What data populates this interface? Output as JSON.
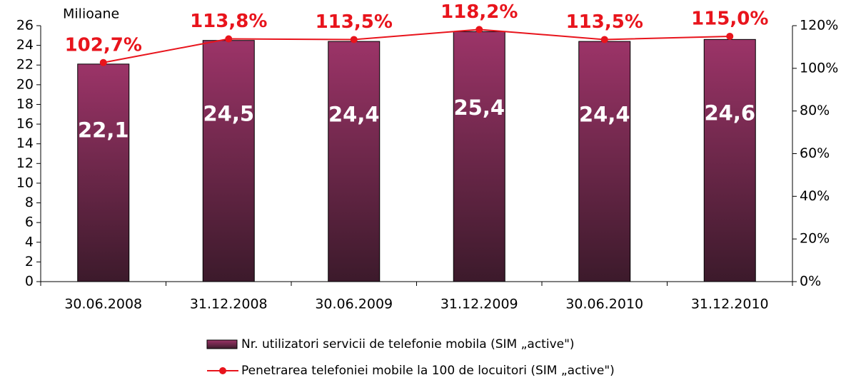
{
  "chart_data": {
    "type": "bar",
    "y_axis_label": "Milioane",
    "categories": [
      "30.06.2008",
      "31.12.2008",
      "30.06.2009",
      "31.12.2009",
      "30.06.2010",
      "31.12.2010"
    ],
    "series": [
      {
        "name": "Nr. utilizatori servicii de telefonie mobila (SIM „active\")",
        "color": "#7a2a52",
        "values": [
          22.1,
          24.5,
          24.4,
          25.4,
          24.4,
          24.6
        ],
        "value_labels": [
          "22,1",
          "24,5",
          "24,4",
          "25,4",
          "24,4",
          "24,6"
        ]
      },
      {
        "name": "Penetrarea telefoniei mobile la 100 de locuitori (SIM „active\")",
        "color": "#e8141c",
        "type": "line",
        "axis": "y2",
        "values": [
          102.7,
          113.8,
          113.5,
          118.2,
          113.5,
          115.0
        ],
        "value_labels": [
          "102,7%",
          "113,8%",
          "113,5%",
          "118,2%",
          "113,5%",
          "115,0%"
        ]
      }
    ],
    "ylim": [
      0,
      26
    ],
    "yticks": [
      0,
      2,
      4,
      6,
      8,
      10,
      12,
      14,
      16,
      18,
      20,
      22,
      24,
      26
    ],
    "y2lim": [
      0,
      120
    ],
    "y2ticks": [
      {
        "value": 0,
        "label": "0%"
      },
      {
        "value": 20,
        "label": "20%"
      },
      {
        "value": 40,
        "label": "40%"
      },
      {
        "value": 60,
        "label": "60%"
      },
      {
        "value": 80,
        "label": "80%"
      },
      {
        "value": 100,
        "label": "100%"
      },
      {
        "value": 120,
        "label": "120%"
      }
    ],
    "grid": false,
    "legend": "bottom"
  }
}
